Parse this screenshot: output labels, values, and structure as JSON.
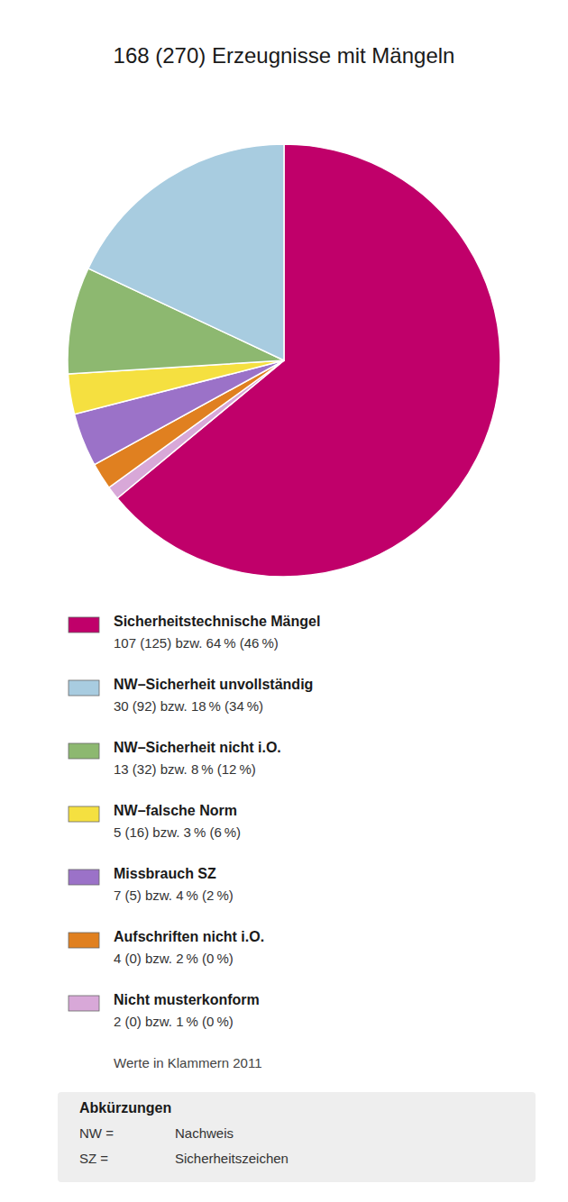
{
  "chart_data": {
    "type": "pie",
    "title": "168 (270) Erzeugnisse mit Mängeln",
    "values": [
      64,
      1,
      2,
      4,
      3,
      8,
      18
    ],
    "colors": [
      "#c0006a",
      "#d8a8d8",
      "#e08020",
      "#9b72c8",
      "#f5e040",
      "#8db870",
      "#a8cce0"
    ],
    "legend_entries": [
      {
        "name": "Sicherheitstechnische Mängel",
        "color": "#c0006a",
        "text": "107 (125) bzw. 64 % (46 %)"
      },
      {
        "name": "NW–Sicherheit unvollständig",
        "color": "#a8cce0",
        "text": "30 (92) bzw. 18 % (34 %)"
      },
      {
        "name": "NW–Sicherheit nicht i.O.",
        "color": "#8db870",
        "text": "13 (32) bzw. 8 % (12 %)"
      },
      {
        "name": "NW–falsche Norm",
        "color": "#f5e040",
        "text": "5 (16) bzw. 3 % (6 %)"
      },
      {
        "name": "Missbrauch SZ",
        "color": "#9b72c8",
        "text": "7 (5) bzw. 4 % (2 %)"
      },
      {
        "name": "Aufschriften nicht i.O.",
        "color": "#e08020",
        "text": "4 (0) bzw. 2 % (0 %)"
      },
      {
        "name": "Nicht musterkonform",
        "color": "#d8a8d8",
        "text": "2 (0) bzw. 1 % (0 %)"
      }
    ],
    "note": "Werte in Klammern 2011",
    "abbreviations": {
      "title": "Abkürzungen",
      "lines": [
        [
          "NW =",
          "Nachweis"
        ],
        [
          "SZ =",
          "Sicherheitszeichen"
        ]
      ]
    }
  }
}
